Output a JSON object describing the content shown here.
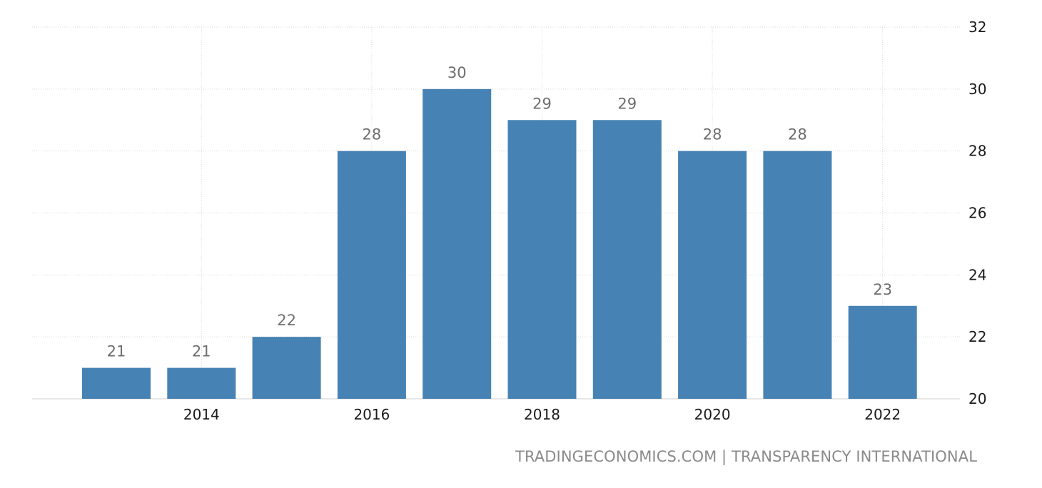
{
  "chart_data": {
    "type": "bar",
    "title": "",
    "xlabel": "",
    "ylabel": "",
    "x": [
      2013,
      2014,
      2015,
      2016,
      2017,
      2018,
      2019,
      2020,
      2021,
      2022
    ],
    "values": [
      21,
      21,
      22,
      28,
      30,
      29,
      29,
      28,
      28,
      23
    ],
    "data_labels": [
      "21",
      "21",
      "22",
      "28",
      "30",
      "29",
      "29",
      "28",
      "28",
      "23"
    ],
    "x_ticks": [
      {
        "value": 2014,
        "label": "2014"
      },
      {
        "value": 2016,
        "label": "2016"
      },
      {
        "value": 2018,
        "label": "2018"
      },
      {
        "value": 2020,
        "label": "2020"
      },
      {
        "value": 2022,
        "label": "2022"
      }
    ],
    "y_ticks": [
      {
        "value": 20,
        "label": "20"
      },
      {
        "value": 22,
        "label": "22"
      },
      {
        "value": 24,
        "label": "24"
      },
      {
        "value": 26,
        "label": "26"
      },
      {
        "value": 28,
        "label": "28"
      },
      {
        "value": 30,
        "label": "30"
      },
      {
        "value": 32,
        "label": "32"
      }
    ],
    "ylim": [
      20,
      32
    ],
    "y_axis_side": "right",
    "grid": true,
    "legend": "none",
    "bar_color": "#4682b4",
    "grid_color": "#d9d9d9",
    "label_color": "#6e6e6e",
    "tick_color": "#1a1a1a"
  },
  "source": {
    "text": "TRADINGECONOMICS.COM | TRANSPARENCY INTERNATIONAL"
  }
}
